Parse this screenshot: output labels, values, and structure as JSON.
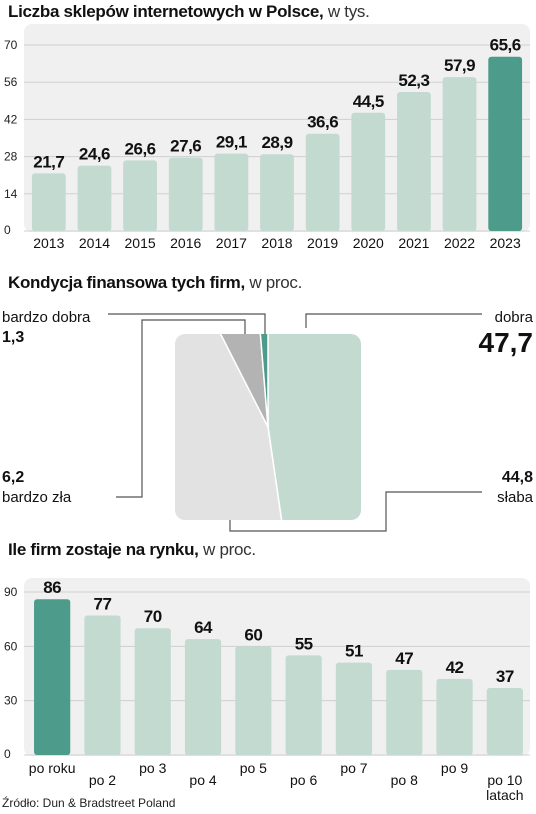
{
  "colors": {
    "bar": "#c3dad1",
    "highlight": "#4d9b8a",
    "panel": "#f0f0f0",
    "grid": "#cfcfcf",
    "pie_dobra": "#c3dad1",
    "pie_slaba": "#e2e2e2",
    "pie_bardzo_zla": "#b3b3b3",
    "pie_bardzo_dobra": "#4d9b8a"
  },
  "chart_data": [
    {
      "type": "bar",
      "title": "Liczba sklepów internetowych w Polsce,",
      "title_unit": "w tys.",
      "categories": [
        "2013",
        "2014",
        "2015",
        "2016",
        "2017",
        "2018",
        "2019",
        "2020",
        "2021",
        "2022",
        "2023"
      ],
      "values": [
        21.7,
        24.6,
        26.6,
        27.6,
        29.1,
        28.9,
        36.6,
        44.5,
        52.3,
        57.9,
        65.6
      ],
      "value_labels": [
        "21,7",
        "24,6",
        "26,6",
        "27,6",
        "29,1",
        "28,9",
        "36,6",
        "44,5",
        "52,3",
        "57,9",
        "65,6"
      ],
      "highlight_index": 10,
      "ylim": [
        0,
        70
      ],
      "yticks": [
        0,
        14,
        28,
        42,
        56,
        70
      ],
      "grid": true
    },
    {
      "type": "pie",
      "title": "Kondycja finansowa tych firm,",
      "title_unit": "w proc.",
      "slices": [
        {
          "name": "dobra",
          "value": 47.7,
          "label": "47,7"
        },
        {
          "name": "słaba",
          "value": 44.8,
          "label": "44,8"
        },
        {
          "name": "bardzo zła",
          "value": 6.2,
          "label": "6,2"
        },
        {
          "name": "bardzo dobra",
          "value": 1.3,
          "label": "1,3"
        }
      ]
    },
    {
      "type": "bar",
      "title": "Ile firm zostaje na rynku,",
      "title_unit": "w proc.",
      "categories": [
        [
          "po roku"
        ],
        [
          "po 2"
        ],
        [
          "po 3"
        ],
        [
          "po 4"
        ],
        [
          "po 5"
        ],
        [
          "po 6"
        ],
        [
          "po 7"
        ],
        [
          "po 8"
        ],
        [
          "po 9"
        ],
        [
          "po 10",
          "latach"
        ]
      ],
      "values": [
        86,
        77,
        70,
        64,
        60,
        55,
        51,
        47,
        42,
        37
      ],
      "value_labels": [
        "86",
        "77",
        "70",
        "64",
        "60",
        "55",
        "51",
        "47",
        "42",
        "37"
      ],
      "highlight_index": 0,
      "ylim": [
        0,
        90
      ],
      "yticks": [
        0,
        30,
        60,
        90
      ],
      "grid": true
    }
  ],
  "source": "Źródło: Dun & Bradstreet Poland"
}
